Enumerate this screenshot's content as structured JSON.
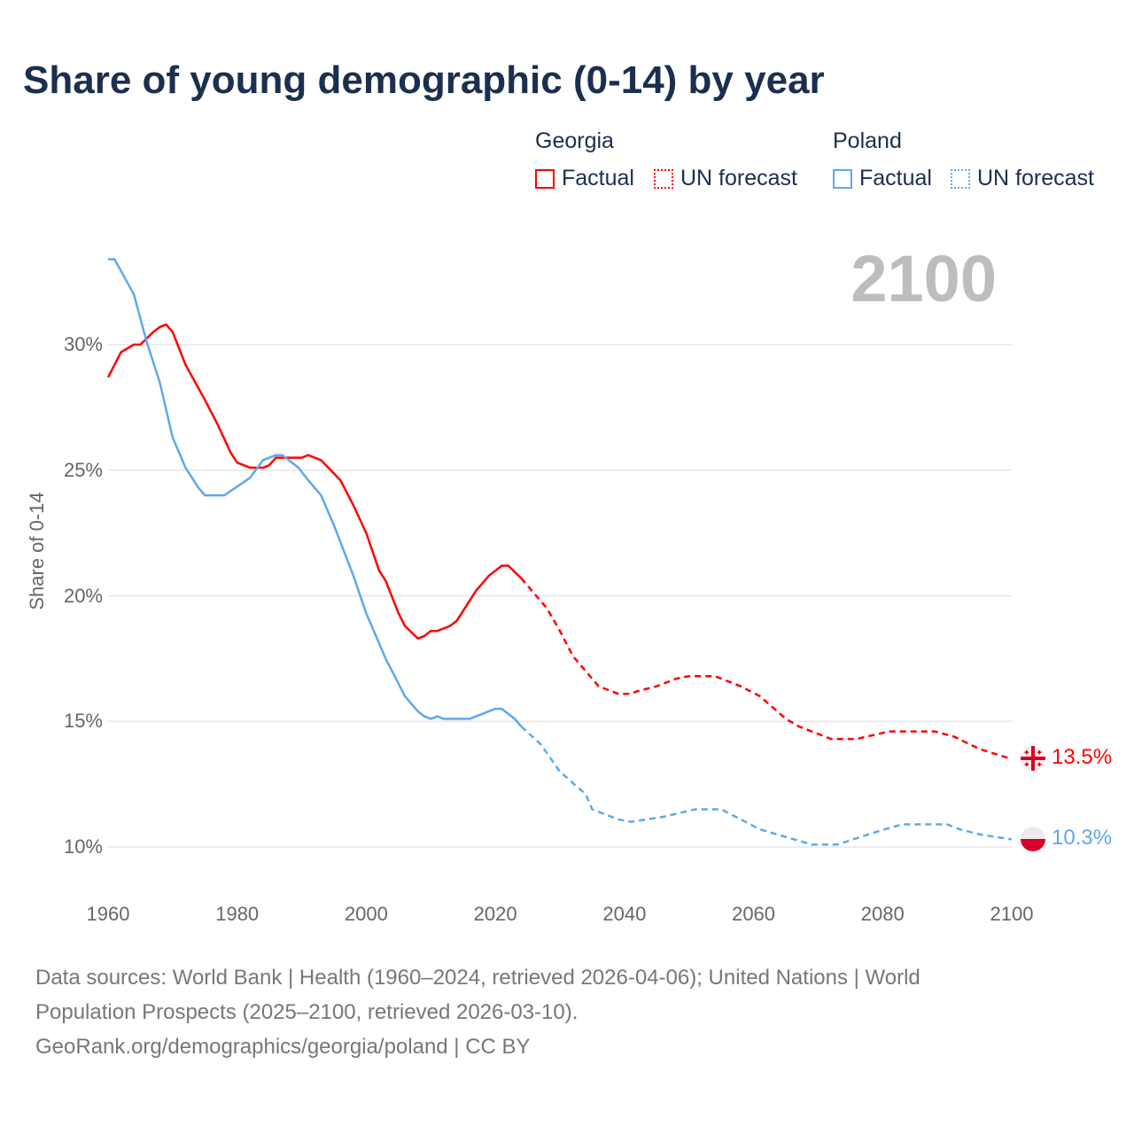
{
  "chart_data": {
    "type": "line",
    "title": "Share of young demographic (0-14) by year",
    "xlabel": "",
    "ylabel": "Share of 0-14",
    "xlim": [
      1960,
      2100
    ],
    "ylim": [
      7.9,
      34
    ],
    "x_ticks": [
      "1960",
      "1980",
      "2000",
      "2020",
      "2040",
      "2060",
      "2080",
      "2100"
    ],
    "y_ticks": [
      {
        "value": 10,
        "label": "10%"
      },
      {
        "value": 15,
        "label": "15%"
      },
      {
        "value": 20,
        "label": "20%"
      },
      {
        "value": 25,
        "label": "25%"
      },
      {
        "value": 30,
        "label": "30%"
      }
    ],
    "grid": true,
    "current_year": "2100",
    "legend": {
      "placement": "top-right",
      "groups": [
        {
          "name": "Georgia",
          "items": [
            "Factual",
            "UN forecast"
          ]
        },
        {
          "name": "Poland",
          "items": [
            "Factual",
            "UN forecast"
          ]
        }
      ]
    },
    "series": [
      {
        "name": "Georgia",
        "color": "#ff0000",
        "end_label": "13.5%",
        "flag": "georgia-flag",
        "factual": [
          [
            1960,
            28.7
          ],
          [
            1962,
            29.7
          ],
          [
            1964,
            30.0
          ],
          [
            1965,
            30.0
          ],
          [
            1967,
            30.5
          ],
          [
            1968,
            30.7
          ],
          [
            1969,
            30.8
          ],
          [
            1970,
            30.5
          ],
          [
            1972,
            29.2
          ],
          [
            1975,
            27.8
          ],
          [
            1977,
            26.8
          ],
          [
            1979,
            25.7
          ],
          [
            1980,
            25.3
          ],
          [
            1982,
            25.1
          ],
          [
            1984,
            25.1
          ],
          [
            1985,
            25.2
          ],
          [
            1986,
            25.5
          ],
          [
            1990,
            25.5
          ],
          [
            1991,
            25.6
          ],
          [
            1993,
            25.4
          ],
          [
            1996,
            24.6
          ],
          [
            1998,
            23.6
          ],
          [
            2000,
            22.5
          ],
          [
            2002,
            21.0
          ],
          [
            2003,
            20.6
          ],
          [
            2005,
            19.3
          ],
          [
            2006,
            18.8
          ],
          [
            2008,
            18.3
          ],
          [
            2009,
            18.4
          ],
          [
            2010,
            18.6
          ],
          [
            2011,
            18.6
          ],
          [
            2013,
            18.8
          ],
          [
            2014,
            19.0
          ],
          [
            2017,
            20.2
          ],
          [
            2019,
            20.8
          ],
          [
            2021,
            21.2
          ],
          [
            2022,
            21.2
          ],
          [
            2024,
            20.7
          ]
        ],
        "forecast": [
          [
            2024,
            20.7
          ],
          [
            2028,
            19.5
          ],
          [
            2030,
            18.6
          ],
          [
            2032,
            17.6
          ],
          [
            2034,
            17.0
          ],
          [
            2036,
            16.4
          ],
          [
            2039,
            16.1
          ],
          [
            2041,
            16.1
          ],
          [
            2042,
            16.2
          ],
          [
            2045,
            16.4
          ],
          [
            2048,
            16.7
          ],
          [
            2050,
            16.8
          ],
          [
            2054,
            16.8
          ],
          [
            2058,
            16.4
          ],
          [
            2061,
            16.0
          ],
          [
            2065,
            15.1
          ],
          [
            2067,
            14.8
          ],
          [
            2072,
            14.3
          ],
          [
            2076,
            14.3
          ],
          [
            2081,
            14.6
          ],
          [
            2088,
            14.6
          ],
          [
            2091,
            14.4
          ],
          [
            2095,
            13.9
          ],
          [
            2100,
            13.5
          ]
        ]
      },
      {
        "name": "Poland",
        "color": "#5ea8ec",
        "end_label": "10.3%",
        "flag": "poland-flag",
        "factual": [
          [
            1960,
            33.4
          ],
          [
            1961,
            33.4
          ],
          [
            1964,
            32.0
          ],
          [
            1966,
            30.1
          ],
          [
            1968,
            28.5
          ],
          [
            1970,
            26.3
          ],
          [
            1972,
            25.1
          ],
          [
            1974,
            24.3
          ],
          [
            1975,
            24.0
          ],
          [
            1978,
            24.0
          ],
          [
            1982,
            24.7
          ],
          [
            1984,
            25.4
          ],
          [
            1986,
            25.6
          ],
          [
            1987,
            25.6
          ],
          [
            1989.5,
            25.1
          ],
          [
            1991,
            24.6
          ],
          [
            1993,
            24.0
          ],
          [
            1995,
            22.8
          ],
          [
            1998,
            20.8
          ],
          [
            2000,
            19.3
          ],
          [
            2003,
            17.5
          ],
          [
            2006,
            16.0
          ],
          [
            2008,
            15.4
          ],
          [
            2009,
            15.2
          ],
          [
            2010,
            15.1
          ],
          [
            2011,
            15.2
          ],
          [
            2012,
            15.1
          ],
          [
            2016,
            15.1
          ],
          [
            2020,
            15.5
          ],
          [
            2021,
            15.5
          ],
          [
            2023,
            15.1
          ],
          [
            2024,
            14.8
          ]
        ],
        "forecast": [
          [
            2024,
            14.8
          ],
          [
            2027,
            14.1
          ],
          [
            2030,
            13.0
          ],
          [
            2034,
            12.1
          ],
          [
            2035,
            11.5
          ],
          [
            2039,
            11.1
          ],
          [
            2041,
            11.0
          ],
          [
            2046,
            11.2
          ],
          [
            2051,
            11.5
          ],
          [
            2055,
            11.5
          ],
          [
            2061,
            10.7
          ],
          [
            2069,
            10.1
          ],
          [
            2073,
            10.1
          ],
          [
            2079,
            10.6
          ],
          [
            2083,
            10.9
          ],
          [
            2090,
            10.9
          ],
          [
            2092,
            10.7
          ],
          [
            2095,
            10.5
          ],
          [
            2100,
            10.3
          ]
        ]
      }
    ]
  },
  "footer": {
    "line1": "Data sources: World Bank | Health (1960–2024, retrieved 2026-04-06); United Nations | World",
    "line2": "Population Prospects (2025–2100, retrieved 2026-03-10).",
    "line3": "GeoRank.org/demographics/georgia/poland | CC BY"
  }
}
